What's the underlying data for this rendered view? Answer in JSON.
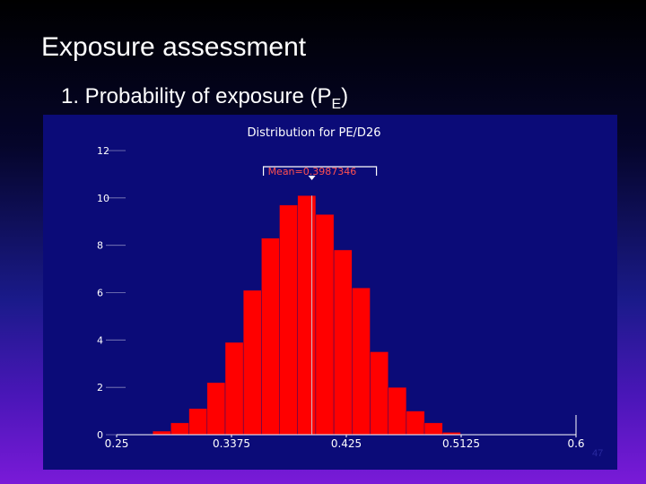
{
  "slide": {
    "title": "Exposure assessment",
    "bullet_prefix": "1. Probability of exposure (P",
    "bullet_subscript": "E",
    "bullet_suffix": ")",
    "page_number": "47"
  },
  "colors": {
    "panel_bg": "#0b0b78",
    "bar_fill": "#ff0000",
    "text": "#ffffff"
  },
  "chart_data": {
    "type": "bar",
    "title": "Distribution for PE/D26",
    "mean_label": "Mean=0.3987346",
    "mean_value": 0.3987346,
    "xlim": [
      0.25,
      0.6
    ],
    "ylim": [
      0,
      12
    ],
    "x_ticks": [
      "0.25",
      "0.3375",
      "0.425",
      "0.5125",
      "0.6"
    ],
    "y_ticks": [
      "0",
      "2",
      "4",
      "6",
      "8",
      "10",
      "12"
    ],
    "grid": false,
    "bin_width": 0.0138,
    "bins": [
      {
        "x0": 0.2775,
        "y": 0.15
      },
      {
        "x0": 0.2913,
        "y": 0.5
      },
      {
        "x0": 0.3051,
        "y": 1.1
      },
      {
        "x0": 0.3189,
        "y": 2.2
      },
      {
        "x0": 0.3327,
        "y": 3.9
      },
      {
        "x0": 0.3465,
        "y": 6.1
      },
      {
        "x0": 0.3603,
        "y": 8.3
      },
      {
        "x0": 0.3741,
        "y": 9.7
      },
      {
        "x0": 0.3879,
        "y": 10.1
      },
      {
        "x0": 0.4017,
        "y": 9.3
      },
      {
        "x0": 0.4155,
        "y": 7.8
      },
      {
        "x0": 0.4293,
        "y": 6.2
      },
      {
        "x0": 0.4431,
        "y": 3.5
      },
      {
        "x0": 0.4569,
        "y": 2.0
      },
      {
        "x0": 0.4707,
        "y": 1.0
      },
      {
        "x0": 0.4845,
        "y": 0.5
      },
      {
        "x0": 0.4983,
        "y": 0.1
      }
    ]
  }
}
